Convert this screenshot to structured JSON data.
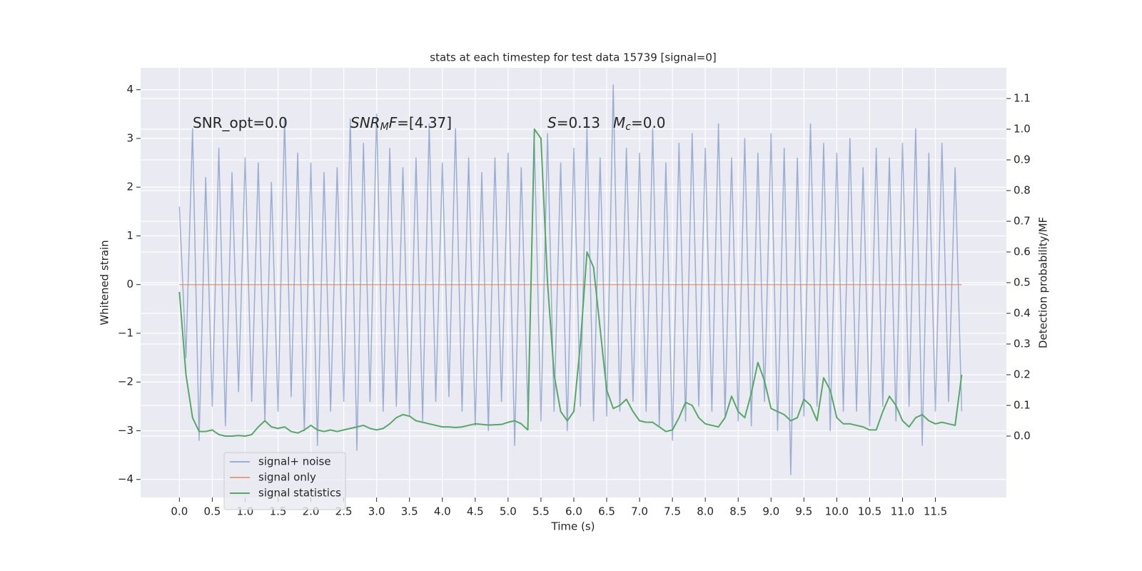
{
  "chart_data": {
    "type": "line",
    "title": "stats at each timestep for test data 15739 [signal=0]",
    "xlabel": "Time (s)",
    "ylabel": "Whitened strain",
    "y2label": "Detection probability/MF",
    "grid": true,
    "legend": "lower left",
    "xlim": [
      -0.59,
      12.58
    ],
    "ylim": [
      -4.37,
      4.45
    ],
    "y2lim": [
      -0.2,
      1.2
    ],
    "xticks": [
      {
        "value": 0,
        "label": "0.0"
      },
      0.5,
      {
        "value": 1,
        "label": "1.0"
      },
      1.5,
      {
        "value": 2,
        "label": "2.0"
      },
      2.5,
      {
        "value": 3,
        "label": "3.0"
      },
      3.5,
      {
        "value": 4,
        "label": "4.0"
      },
      4.5,
      {
        "value": 5,
        "label": "5.0"
      },
      5.5,
      {
        "value": 6,
        "label": "6.0"
      },
      6.5,
      {
        "value": 7,
        "label": "7.0"
      },
      7.5,
      {
        "value": 8,
        "label": "8.0"
      },
      8.5,
      {
        "value": 9,
        "label": "9.0"
      },
      9.5,
      {
        "value": 10,
        "label": "10.0"
      },
      10.5,
      {
        "value": 11,
        "label": "11.0"
      },
      11.5
    ],
    "yticks": [
      {
        "value": -4,
        "label": "−4"
      },
      {
        "value": -3,
        "label": "−3"
      },
      {
        "value": -2,
        "label": "−2"
      },
      {
        "value": -1,
        "label": "−1"
      },
      0,
      1,
      2,
      3,
      4
    ],
    "y2ticks": [
      {
        "value": 0,
        "label": "0.0"
      },
      0.1,
      0.2,
      0.3,
      0.4,
      0.5,
      0.6,
      0.7,
      0.8,
      0.9,
      {
        "value": 1,
        "label": "1.0"
      },
      1.1
    ],
    "annotations": [
      [
        {
          "text": "SNR_opt=0.0"
        }
      ],
      [
        {
          "text": "SNR",
          "italic": true
        },
        {
          "text": "M",
          "italic": true,
          "sub": true
        },
        {
          "text": "F",
          "italic": true
        },
        {
          "text": "=[4.37]"
        }
      ],
      [
        {
          "text": "S",
          "italic": true
        },
        {
          "text": "=0.13"
        }
      ],
      [
        {
          "text": "M",
          "italic": true
        },
        {
          "text": "c",
          "italic": true,
          "sub": true
        },
        {
          "text": "=0.0"
        }
      ]
    ],
    "x": [
      0.0,
      0.1,
      0.2,
      0.3,
      0.4,
      0.5,
      0.6,
      0.7,
      0.8,
      0.9,
      1.0,
      1.1,
      1.2,
      1.3,
      1.4,
      1.5,
      1.6,
      1.7,
      1.8,
      1.9,
      2.0,
      2.1,
      2.2,
      2.3,
      2.4,
      2.5,
      2.6,
      2.7,
      2.8,
      2.9,
      3.0,
      3.1,
      3.2,
      3.3,
      3.4,
      3.5,
      3.6,
      3.7,
      3.8,
      3.9,
      4.0,
      4.1,
      4.2,
      4.3,
      4.4,
      4.5,
      4.6,
      4.7,
      4.8,
      4.9,
      5.0,
      5.1,
      5.2,
      5.3,
      5.4,
      5.5,
      5.6,
      5.7,
      5.8,
      5.9,
      6.0,
      6.1,
      6.2,
      6.3,
      6.4,
      6.5,
      6.6,
      6.7,
      6.8,
      6.9,
      7.0,
      7.1,
      7.2,
      7.3,
      7.4,
      7.5,
      7.6,
      7.7,
      7.8,
      7.9,
      8.0,
      8.1,
      8.2,
      8.3,
      8.4,
      8.5,
      8.6,
      8.7,
      8.8,
      8.9,
      9.0,
      9.1,
      9.2,
      9.3,
      9.4,
      9.5,
      9.6,
      9.7,
      9.8,
      9.9,
      10.0,
      10.1,
      10.2,
      10.3,
      10.4,
      10.5,
      10.6,
      10.7,
      10.8,
      10.9,
      11.0,
      11.1,
      11.2,
      11.3,
      11.4,
      11.5,
      11.6,
      11.7,
      11.8,
      11.9
    ],
    "series": [
      {
        "name": "signal+ noise",
        "color": "#4c72b0",
        "opacity": 0.5,
        "values": [
          1.6,
          -1.5,
          3.2,
          -3.2,
          2.2,
          -2.5,
          2.8,
          -2.9,
          2.3,
          -2.2,
          2.6,
          -2.4,
          2.5,
          -2.8,
          2.1,
          -2.6,
          3.4,
          -2.3,
          2.7,
          -3.0,
          2.5,
          -3.3,
          2.3,
          -2.6,
          2.4,
          -2.4,
          3.4,
          -3.4,
          2.9,
          -2.4,
          3.5,
          -2.6,
          2.8,
          -2.5,
          2.4,
          -2.7,
          2.6,
          -2.8,
          3.3,
          -2.4,
          2.5,
          -2.3,
          3.2,
          -2.6,
          2.6,
          -2.9,
          2.3,
          -3.0,
          2.6,
          -2.4,
          2.7,
          -3.3,
          2.4,
          -2.6,
          2.9,
          -2.8,
          3.1,
          -2.6,
          2.5,
          -3.0,
          2.8,
          -2.5,
          3.2,
          -2.8,
          2.6,
          -2.7,
          4.1,
          -2.6,
          2.8,
          -2.4,
          2.7,
          -2.6,
          3.2,
          -2.9,
          2.5,
          -3.2,
          2.9,
          -2.8,
          3.1,
          -2.5,
          2.8,
          -2.6,
          3.3,
          -2.7,
          2.6,
          -2.8,
          3.0,
          -2.9,
          2.7,
          -2.4,
          3.1,
          -3.0,
          2.8,
          -3.9,
          2.6,
          -2.7,
          3.3,
          -2.5,
          2.9,
          -3.0,
          2.7,
          -2.6,
          3.0,
          -2.6,
          2.4,
          -2.9,
          2.8,
          -2.5,
          2.6,
          -2.8,
          2.9,
          -2.5,
          3.2,
          -3.3,
          2.7,
          -2.6,
          2.9,
          -2.4,
          2.4,
          -2.6
        ]
      },
      {
        "name": "signal only",
        "color": "#dd8452",
        "opacity": 0.7,
        "values": [
          0,
          0,
          0,
          0,
          0,
          0,
          0,
          0,
          0,
          0,
          0,
          0,
          0,
          0,
          0,
          0,
          0,
          0,
          0,
          0,
          0,
          0,
          0,
          0,
          0,
          0,
          0,
          0,
          0,
          0,
          0,
          0,
          0,
          0,
          0,
          0,
          0,
          0,
          0,
          0,
          0,
          0,
          0,
          0,
          0,
          0,
          0,
          0,
          0,
          0,
          0,
          0,
          0,
          0,
          0,
          0,
          0,
          0,
          0,
          0,
          0,
          0,
          0,
          0,
          0,
          0,
          0,
          0,
          0,
          0,
          0,
          0,
          0,
          0,
          0,
          0,
          0,
          0,
          0,
          0,
          0,
          0,
          0,
          0,
          0,
          0,
          0,
          0,
          0,
          0,
          0,
          0,
          0,
          0,
          0,
          0,
          0,
          0,
          0,
          0,
          0,
          0,
          0,
          0,
          0,
          0,
          0,
          0,
          0,
          0,
          0,
          0,
          0,
          0,
          0,
          0,
          0,
          0,
          0,
          0
        ]
      },
      {
        "name": "signal statistics",
        "color": "#55a868",
        "opacity": 1,
        "axis": "y2",
        "values": [
          0.47,
          0.2,
          0.06,
          0.015,
          0.015,
          0.02,
          0.005,
          0.0,
          0.0,
          0.002,
          0.0,
          0.005,
          0.03,
          0.05,
          0.03,
          0.025,
          0.03,
          0.015,
          0.01,
          0.02,
          0.035,
          0.02,
          0.015,
          0.02,
          0.015,
          0.02,
          0.025,
          0.03,
          0.035,
          0.025,
          0.02,
          0.025,
          0.04,
          0.06,
          0.07,
          0.065,
          0.05,
          0.045,
          0.04,
          0.035,
          0.03,
          0.03,
          0.028,
          0.03,
          0.035,
          0.04,
          0.038,
          0.036,
          0.037,
          0.038,
          0.045,
          0.05,
          0.04,
          0.02,
          1.0,
          0.97,
          0.5,
          0.2,
          0.08,
          0.05,
          0.08,
          0.3,
          0.6,
          0.55,
          0.35,
          0.15,
          0.09,
          0.1,
          0.12,
          0.08,
          0.05,
          0.045,
          0.045,
          0.03,
          0.015,
          0.02,
          0.06,
          0.11,
          0.1,
          0.06,
          0.04,
          0.035,
          0.03,
          0.06,
          0.13,
          0.08,
          0.06,
          0.14,
          0.24,
          0.18,
          0.09,
          0.08,
          0.07,
          0.05,
          0.06,
          0.12,
          0.1,
          0.05,
          0.19,
          0.15,
          0.06,
          0.04,
          0.04,
          0.035,
          0.03,
          0.02,
          0.02,
          0.08,
          0.13,
          0.1,
          0.05,
          0.03,
          0.06,
          0.07,
          0.05,
          0.04,
          0.045,
          0.04,
          0.035,
          0.2
        ]
      }
    ]
  }
}
